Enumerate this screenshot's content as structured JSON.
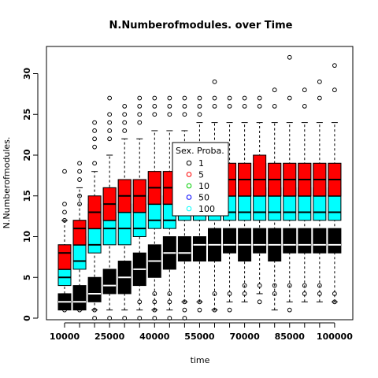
{
  "chart_data": {
    "type": "box",
    "title": "N.Numberofmodules. over Time",
    "xlabel": "time",
    "ylabel": "N.Numberofmodules.",
    "ylim": [
      0,
      32
    ],
    "y_ticks": [
      0,
      5,
      10,
      15,
      20,
      25,
      30
    ],
    "x_tick_labels": [
      "10000",
      "25000",
      "40000",
      "55000",
      "70000",
      "85000",
      "100000"
    ],
    "categories": [
      10000,
      15000,
      20000,
      25000,
      30000,
      35000,
      40000,
      45000,
      50000,
      55000,
      60000,
      65000,
      70000,
      75000,
      80000,
      85000,
      90000,
      95000,
      100000
    ],
    "legend": {
      "title": "Sex. Proba.",
      "placement": "center",
      "entries": [
        {
          "label": "1",
          "color": "#000000"
        },
        {
          "label": "5",
          "color": "#ff0000"
        },
        {
          "label": "10",
          "color": "#00cd00"
        },
        {
          "label": "50",
          "color": "#0000ff"
        },
        {
          "label": "100",
          "color": "#00ffff"
        }
      ]
    },
    "series": [
      {
        "name": "100",
        "color": "#00ffff",
        "boxes": [
          {
            "q1": 4,
            "median": 5,
            "q3": 6
          },
          {
            "q1": 6,
            "median": 7,
            "q3": 9
          },
          {
            "q1": 8,
            "median": 9,
            "q3": 11
          },
          {
            "q1": 9,
            "median": 11,
            "q3": 12
          },
          {
            "q1": 9,
            "median": 11,
            "q3": 13
          },
          {
            "q1": 10,
            "median": 11,
            "q3": 13
          },
          {
            "q1": 11,
            "median": 12,
            "q3": 14
          },
          {
            "q1": 11,
            "median": 12,
            "q3": 14
          },
          {
            "q1": 12,
            "median": 13,
            "q3": 14
          },
          {
            "q1": 12,
            "median": 13,
            "q3": 14
          },
          {
            "q1": 12,
            "median": 13,
            "q3": 14
          },
          {
            "q1": 12,
            "median": 13,
            "q3": 15
          },
          {
            "q1": 12,
            "median": 13,
            "q3": 15
          },
          {
            "q1": 12,
            "median": 13,
            "q3": 15
          },
          {
            "q1": 12,
            "median": 13,
            "q3": 15
          },
          {
            "q1": 12,
            "median": 13,
            "q3": 15
          },
          {
            "q1": 12,
            "median": 13,
            "q3": 15
          },
          {
            "q1": 12,
            "median": 13,
            "q3": 15
          },
          {
            "q1": 12,
            "median": 13,
            "q3": 15
          }
        ]
      },
      {
        "name": "50",
        "color": "#0000ff",
        "boxes": [
          {
            "q1": 6,
            "median": 6,
            "q3": 7
          },
          {
            "q1": 9,
            "median": 9,
            "q3": 10
          },
          {
            "q1": 11,
            "median": 11,
            "q3": 12
          },
          {
            "q1": 12,
            "median": 12,
            "q3": 13
          },
          {
            "q1": 13,
            "median": 13,
            "q3": 14
          },
          {
            "q1": 13,
            "median": 13,
            "q3": 14
          },
          {
            "q1": 14,
            "median": 14,
            "q3": 15
          },
          {
            "q1": 14,
            "median": 14,
            "q3": 15
          },
          {
            "q1": 14,
            "median": 14,
            "q3": 15
          },
          {
            "q1": 14,
            "median": 14,
            "q3": 15
          },
          {
            "q1": 14,
            "median": 14,
            "q3": 15
          },
          {
            "q1": 15,
            "median": 15,
            "q3": 16
          },
          {
            "q1": 15,
            "median": 15,
            "q3": 16
          },
          {
            "q1": 15,
            "median": 15,
            "q3": 16
          },
          {
            "q1": 15,
            "median": 15,
            "q3": 16
          },
          {
            "q1": 15,
            "median": 15,
            "q3": 16
          },
          {
            "q1": 15,
            "median": 15,
            "q3": 16
          },
          {
            "q1": 15,
            "median": 15,
            "q3": 16
          },
          {
            "q1": 15,
            "median": 15,
            "q3": 16
          }
        ]
      },
      {
        "name": "10",
        "color": "#00cd00",
        "boxes": [
          {
            "q1": 6,
            "median": 8,
            "q3": 9
          },
          {
            "q1": 9,
            "median": 11,
            "q3": 12
          },
          {
            "q1": 11,
            "median": 13,
            "q3": 14
          },
          {
            "q1": 12,
            "median": 14,
            "q3": 16
          },
          {
            "q1": 13,
            "median": 15,
            "q3": 17
          },
          {
            "q1": 13,
            "median": 15,
            "q3": 17
          },
          {
            "q1": 14,
            "median": 16,
            "q3": 18
          },
          {
            "q1": 14,
            "median": 16,
            "q3": 18
          },
          {
            "q1": 15,
            "median": 16,
            "q3": 18
          },
          {
            "q1": 15,
            "median": 17,
            "q3": 19
          },
          {
            "q1": 15,
            "median": 17,
            "q3": 19
          },
          {
            "q1": 15,
            "median": 17,
            "q3": 19
          },
          {
            "q1": 15,
            "median": 17,
            "q3": 19
          },
          {
            "q1": 15,
            "median": 17,
            "q3": 19
          },
          {
            "q1": 15,
            "median": 17,
            "q3": 19
          },
          {
            "q1": 15,
            "median": 17,
            "q3": 19
          },
          {
            "q1": 15,
            "median": 17,
            "q3": 19
          },
          {
            "q1": 15,
            "median": 17,
            "q3": 19
          },
          {
            "q1": 15,
            "median": 17,
            "q3": 19
          }
        ]
      },
      {
        "name": "5",
        "color": "#ff0000",
        "boxes": [
          {
            "q1": 6,
            "median": 8,
            "q3": 9
          },
          {
            "q1": 9,
            "median": 11,
            "q3": 12
          },
          {
            "q1": 11,
            "median": 13,
            "q3": 15
          },
          {
            "q1": 12,
            "median": 14,
            "q3": 16
          },
          {
            "q1": 13,
            "median": 15,
            "q3": 17
          },
          {
            "q1": 13,
            "median": 15,
            "q3": 17
          },
          {
            "q1": 14,
            "median": 16,
            "q3": 18
          },
          {
            "q1": 14,
            "median": 16,
            "q3": 18
          },
          {
            "q1": 15,
            "median": 16,
            "q3": 18
          },
          {
            "q1": 15,
            "median": 17,
            "q3": 19
          },
          {
            "q1": 15,
            "median": 17,
            "q3": 19
          },
          {
            "q1": 15,
            "median": 17,
            "q3": 19
          },
          {
            "q1": 15,
            "median": 17,
            "q3": 19
          },
          {
            "q1": 15,
            "median": 17,
            "q3": 20
          },
          {
            "q1": 15,
            "median": 17,
            "q3": 19
          },
          {
            "q1": 15,
            "median": 17,
            "q3": 19
          },
          {
            "q1": 15,
            "median": 17,
            "q3": 19
          },
          {
            "q1": 15,
            "median": 17,
            "q3": 19
          },
          {
            "q1": 15,
            "median": 17,
            "q3": 19
          }
        ]
      },
      {
        "name": "1",
        "color": "#000000",
        "boxes": [
          {
            "q1": 1,
            "median": 2,
            "q3": 3
          },
          {
            "q1": 1,
            "median": 2,
            "q3": 4
          },
          {
            "q1": 2,
            "median": 3,
            "q3": 5
          },
          {
            "q1": 3,
            "median": 4,
            "q3": 6
          },
          {
            "q1": 3,
            "median": 5,
            "q3": 7
          },
          {
            "q1": 4,
            "median": 6,
            "q3": 8
          },
          {
            "q1": 5,
            "median": 7,
            "q3": 9
          },
          {
            "q1": 6,
            "median": 8,
            "q3": 10
          },
          {
            "q1": 7,
            "median": 8,
            "q3": 10
          },
          {
            "q1": 7,
            "median": 9,
            "q3": 10
          },
          {
            "q1": 7,
            "median": 9,
            "q3": 11
          },
          {
            "q1": 8,
            "median": 9,
            "q3": 11
          },
          {
            "q1": 7,
            "median": 9,
            "q3": 11
          },
          {
            "q1": 8,
            "median": 9,
            "q3": 11
          },
          {
            "q1": 7,
            "median": 9,
            "q3": 11
          },
          {
            "q1": 8,
            "median": 9,
            "q3": 11
          },
          {
            "q1": 8,
            "median": 9,
            "q3": 11
          },
          {
            "q1": 8,
            "median": 9,
            "q3": 11
          },
          {
            "q1": 8,
            "median": 9,
            "q3": 11
          }
        ]
      }
    ],
    "whiskers": [
      {
        "low": 3,
        "high": 12
      },
      {
        "low": 1,
        "high": 16
      },
      {
        "low": 1,
        "high": 18
      },
      {
        "low": 1,
        "high": 20
      },
      {
        "low": 1,
        "high": 22
      },
      {
        "low": 1,
        "high": 22
      },
      {
        "low": 1,
        "high": 23
      },
      {
        "low": 1,
        "high": 23
      },
      {
        "low": 2,
        "high": 23
      },
      {
        "low": 2,
        "high": 24
      },
      {
        "low": 1,
        "high": 24
      },
      {
        "low": 2,
        "high": 24
      },
      {
        "low": 2,
        "high": 24
      },
      {
        "low": 3,
        "high": 24
      },
      {
        "low": 1,
        "high": 24
      },
      {
        "low": 2,
        "high": 24
      },
      {
        "low": 2,
        "high": 24
      },
      {
        "low": 2,
        "high": 24
      },
      {
        "low": 2,
        "high": 24
      }
    ],
    "outliers": [
      [
        1,
        14,
        13,
        18,
        12
      ],
      [
        17,
        18,
        19,
        14,
        15,
        1
      ],
      [
        19,
        21,
        22,
        23,
        24,
        0,
        1
      ],
      [
        22,
        23,
        24,
        25,
        27,
        0
      ],
      [
        23,
        24,
        25,
        26,
        0
      ],
      [
        24,
        25,
        26,
        27,
        0,
        2
      ],
      [
        25,
        26,
        27,
        0,
        1,
        2,
        3
      ],
      [
        25,
        26,
        27,
        0,
        2,
        3
      ],
      [
        25,
        26,
        27,
        0,
        1,
        2
      ],
      [
        25,
        26,
        27,
        2,
        1
      ],
      [
        26,
        27,
        29,
        1,
        3
      ],
      [
        26,
        27,
        1,
        3
      ],
      [
        26,
        27,
        3,
        4
      ],
      [
        26,
        27,
        2,
        4
      ],
      [
        26,
        28,
        3,
        4
      ],
      [
        27,
        32,
        1,
        4
      ],
      [
        26,
        28,
        3,
        4
      ],
      [
        27,
        29,
        3,
        4
      ],
      [
        28,
        31,
        2,
        3
      ]
    ]
  }
}
